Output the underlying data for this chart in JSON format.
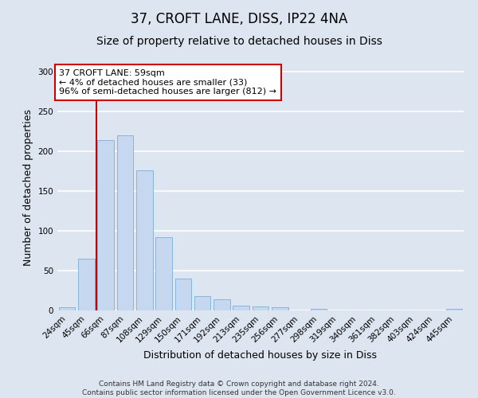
{
  "title1": "37, CROFT LANE, DISS, IP22 4NA",
  "title2": "Size of property relative to detached houses in Diss",
  "xlabel": "Distribution of detached houses by size in Diss",
  "ylabel": "Number of detached properties",
  "categories": [
    "24sqm",
    "45sqm",
    "66sqm",
    "87sqm",
    "108sqm",
    "129sqm",
    "150sqm",
    "171sqm",
    "192sqm",
    "213sqm",
    "235sqm",
    "256sqm",
    "277sqm",
    "298sqm",
    "319sqm",
    "340sqm",
    "361sqm",
    "382sqm",
    "403sqm",
    "424sqm",
    "445sqm"
  ],
  "values": [
    4,
    65,
    214,
    220,
    176,
    92,
    40,
    18,
    14,
    6,
    5,
    4,
    0,
    2,
    0,
    0,
    0,
    0,
    0,
    0,
    2
  ],
  "bar_color": "#c5d8ef",
  "bar_edge_color": "#7aadd4",
  "background_color": "#dde6f0",
  "grid_color": "#ffffff",
  "vline_position": 1.5,
  "vline_color": "#cc0000",
  "annotation_text": "37 CROFT LANE: 59sqm\n← 4% of detached houses are smaller (33)\n96% of semi-detached houses are larger (812) →",
  "annotation_box_color": "#ffffff",
  "annotation_box_edge_color": "#cc0000",
  "ylim": [
    0,
    310
  ],
  "yticks": [
    0,
    50,
    100,
    150,
    200,
    250,
    300
  ],
  "footer": "Contains HM Land Registry data © Crown copyright and database right 2024.\nContains public sector information licensed under the Open Government Licence v3.0.",
  "title1_fontsize": 12,
  "title2_fontsize": 10,
  "xlabel_fontsize": 9,
  "ylabel_fontsize": 9,
  "tick_fontsize": 7.5,
  "footer_fontsize": 6.5,
  "annotation_fontsize": 8
}
